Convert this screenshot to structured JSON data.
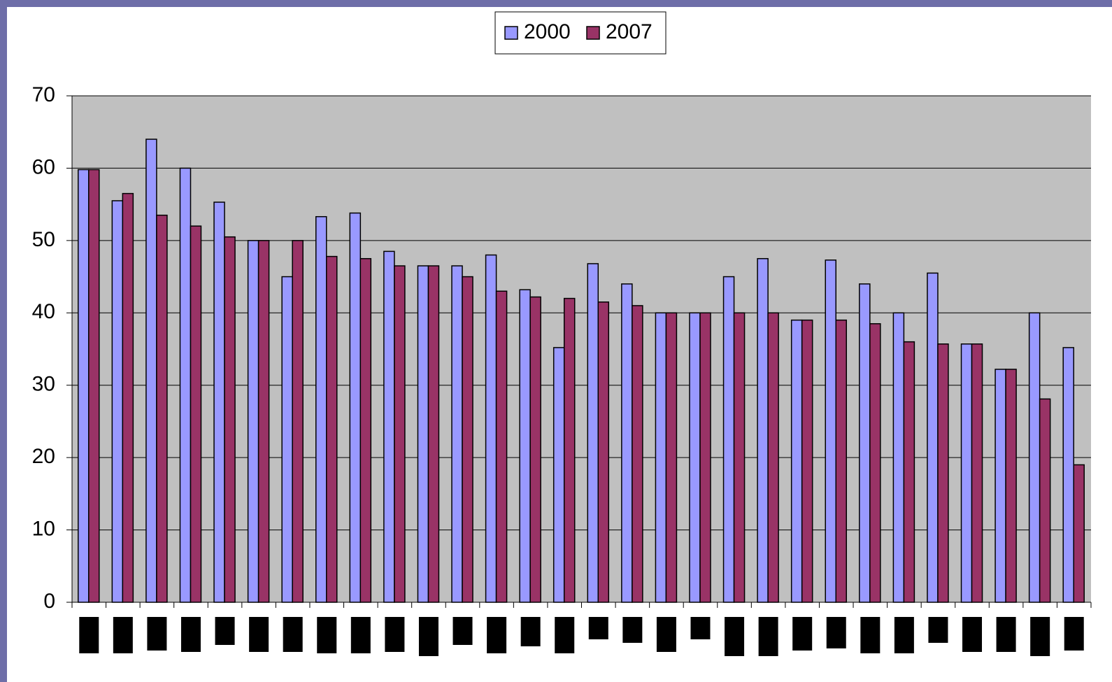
{
  "chart_data": {
    "type": "bar",
    "categories": [
      null,
      null,
      null,
      null,
      null,
      null,
      null,
      null,
      null,
      null,
      null,
      null,
      null,
      null,
      null,
      null,
      null,
      null,
      null,
      null,
      null,
      null,
      null,
      null,
      null,
      null,
      null,
      null,
      null,
      null
    ],
    "series": [
      {
        "name": "2000",
        "color": "#9999ff",
        "values": [
          59.8,
          55.5,
          64,
          60,
          55.3,
          50,
          45,
          53.3,
          53.8,
          48.5,
          46.5,
          46.5,
          48,
          43.2,
          35.2,
          46.8,
          44,
          40,
          40,
          45,
          47.5,
          39,
          47.3,
          44,
          40,
          45.5,
          35.7,
          32.2,
          40,
          35.2
        ]
      },
      {
        "name": "2007",
        "color": "#993366",
        "values": [
          59.8,
          56.5,
          53.5,
          52,
          50.5,
          50,
          50,
          47.8,
          47.5,
          46.5,
          46.5,
          45,
          43,
          42.2,
          42,
          41.5,
          41,
          40,
          40,
          40,
          40,
          39,
          39,
          38.5,
          36,
          35.7,
          35.7,
          32.2,
          28.1,
          19
        ]
      }
    ],
    "ylim": [
      0,
      70
    ],
    "yticks": [
      0,
      10,
      20,
      30,
      40,
      50,
      60,
      70
    ],
    "grid": true,
    "legend": "top"
  }
}
